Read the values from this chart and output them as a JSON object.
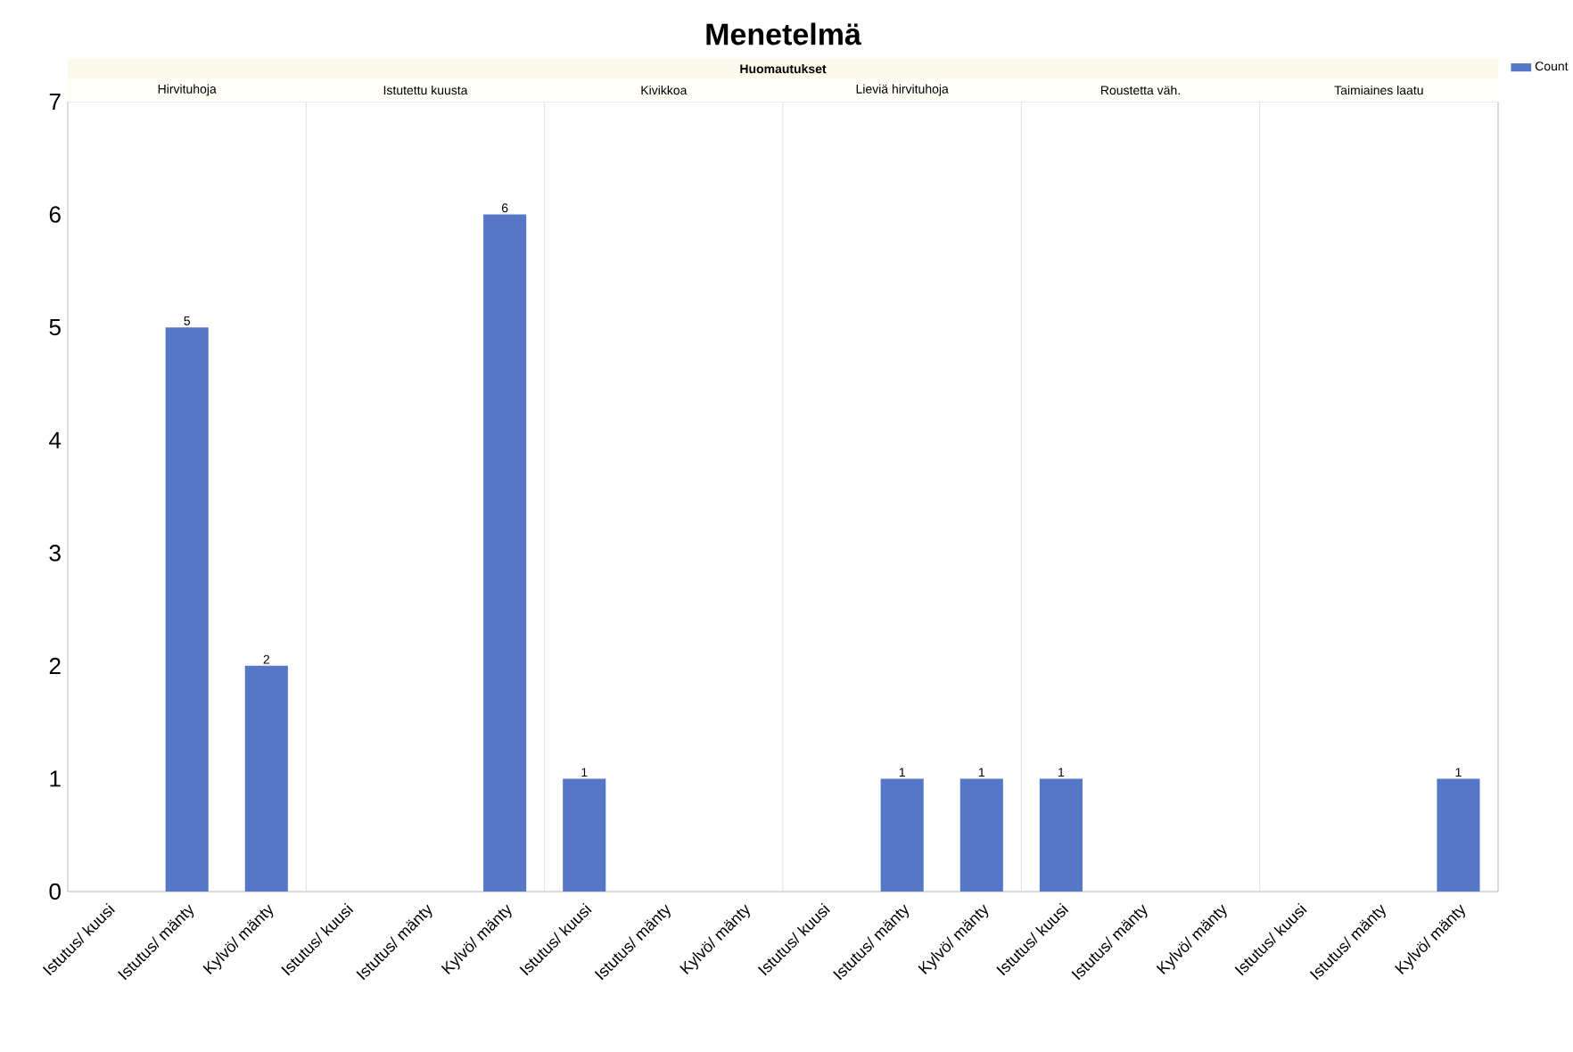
{
  "chart_data": {
    "type": "bar",
    "title": "Menetelmä",
    "subtitle": "Huomautukset",
    "categories": [
      "Istutus/ kuusi",
      "Istutus/ mänty",
      "Kylvö/ mänty",
      "Istutus/ kuusi",
      "Istutus/ mänty",
      "Kylvö/ mänty",
      "Istutus/ kuusi",
      "Istutus/ mänty",
      "Kylvö/ mänty",
      "Istutus/ kuusi",
      "Istutus/ mänty",
      "Kylvö/ mänty",
      "Istutus/ kuusi",
      "Istutus/ mänty",
      "Kylvö/ mänty",
      "Istutus/ kuusi",
      "Istutus/ mänty",
      "Kylvö/ mänty"
    ],
    "series": [
      {
        "name": "Count",
        "color": "#5677c5",
        "values": [
          null,
          5,
          2,
          null,
          null,
          6,
          1,
          null,
          null,
          null,
          1,
          1,
          1,
          null,
          null,
          null,
          null,
          1
        ]
      }
    ],
    "annotations": [
      "Hirvituhoja",
      "Istutettu kuusta",
      "Kivikkoa",
      "Lieviä hirvituhoja",
      "Roustetta väh.",
      "Taimiaines laatu"
    ],
    "ylim": [
      0,
      7
    ],
    "yticks": [
      0,
      1,
      2,
      3,
      4,
      5,
      6,
      7
    ],
    "data_labels": true,
    "legend": "top right"
  }
}
